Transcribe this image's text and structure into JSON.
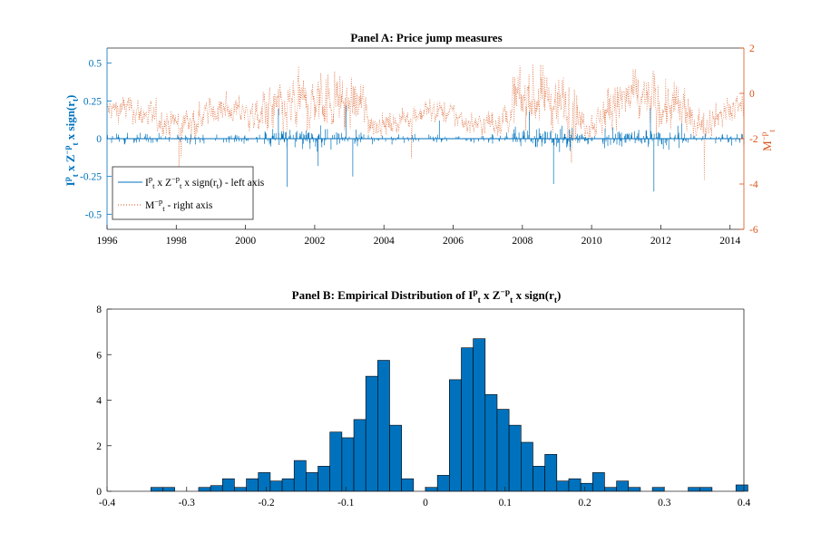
{
  "colors": {
    "blue": "#0072BD",
    "orange": "#D95319",
    "bar_fill": "#0072BD"
  },
  "chart_data": [
    {
      "type": "line",
      "title": "Panel A: Price jump measures",
      "ylabel_left": "I_t^p x Z_t^{-p} x sign(r_t)",
      "ylabel_right": "M_t^{-p}",
      "xlim": [
        1996,
        2014.4
      ],
      "ylim_left": [
        -0.6,
        0.6
      ],
      "ylim_right": [
        -6,
        2
      ],
      "x_ticks": [
        "1996",
        "1998",
        "2000",
        "2002",
        "2004",
        "2006",
        "2008",
        "2010",
        "2012",
        "2014"
      ],
      "y_ticks_left": [
        "-0.5",
        "-0.25",
        "0",
        "0.25",
        "0.5"
      ],
      "y_ticks_right": [
        "-6",
        "-4",
        "-2",
        "0",
        "2"
      ],
      "grid": false,
      "legend": "bottom-left",
      "legend_entries": [
        "I_t^p x Z_t^{-p} x sign(r_t) - left axis",
        "M_t^{-p} - right axis"
      ],
      "series": [
        {
          "name": "I_t^p x Z_t^{-p} x sign(r_t) - left axis",
          "axis": "left",
          "style": "solid"
        },
        {
          "name": "M_t^{-p} - right axis",
          "axis": "right",
          "style": "dotted"
        }
      ],
      "approx_shape": {
        "left_series_spikes": [
          {
            "x": 2000.95,
            "y": 0.2
          },
          {
            "x": 2001.2,
            "y": -0.32
          },
          {
            "x": 2002.1,
            "y": -0.18
          },
          {
            "x": 2002.9,
            "y": 0.22
          },
          {
            "x": 2003.1,
            "y": -0.25
          },
          {
            "x": 2005.6,
            "y": 0.12
          },
          {
            "x": 2008.2,
            "y": 0.18
          },
          {
            "x": 2008.9,
            "y": -0.3
          },
          {
            "x": 2011.7,
            "y": 0.2
          },
          {
            "x": 2011.8,
            "y": -0.35
          },
          {
            "x": 2012.6,
            "y": 0.1
          }
        ],
        "right_series_baseline": -0.9,
        "right_series_range": [
          -4.7,
          1.7
        ]
      }
    },
    {
      "type": "bar",
      "title": "Panel B: Empirical Distribution of I_t^p x Z_t^{-p} x sign(r_t)",
      "xlim": [
        -0.4,
        0.4
      ],
      "ylim": [
        0,
        8
      ],
      "x_ticks": [
        "-0.4",
        "-0.3",
        "-0.2",
        "-0.1",
        "0",
        "0.1",
        "0.2",
        "0.3",
        "0.4"
      ],
      "y_ticks": [
        "0",
        "2",
        "4",
        "6",
        "8"
      ],
      "bin_width": 0.015,
      "bins": [
        {
          "x": -0.3375,
          "y": 0.17
        },
        {
          "x": -0.3225,
          "y": 0.17
        },
        {
          "x": -0.2775,
          "y": 0.17
        },
        {
          "x": -0.2625,
          "y": 0.25
        },
        {
          "x": -0.2475,
          "y": 0.55
        },
        {
          "x": -0.2325,
          "y": 0.17
        },
        {
          "x": -0.2175,
          "y": 0.55
        },
        {
          "x": -0.2025,
          "y": 0.82
        },
        {
          "x": -0.1875,
          "y": 0.45
        },
        {
          "x": -0.1725,
          "y": 0.55
        },
        {
          "x": -0.1575,
          "y": 1.35
        },
        {
          "x": -0.1425,
          "y": 0.82
        },
        {
          "x": -0.1275,
          "y": 1.1
        },
        {
          "x": -0.1125,
          "y": 2.6
        },
        {
          "x": -0.0975,
          "y": 2.35
        },
        {
          "x": -0.0825,
          "y": 3.15
        },
        {
          "x": -0.0675,
          "y": 5.05
        },
        {
          "x": -0.0525,
          "y": 5.75
        },
        {
          "x": -0.0375,
          "y": 2.9
        },
        {
          "x": -0.0225,
          "y": 0.55
        },
        {
          "x": 0.0075,
          "y": 0.17
        },
        {
          "x": 0.0225,
          "y": 0.7
        },
        {
          "x": 0.0375,
          "y": 4.9
        },
        {
          "x": 0.0525,
          "y": 6.3
        },
        {
          "x": 0.0675,
          "y": 6.7
        },
        {
          "x": 0.0825,
          "y": 4.25
        },
        {
          "x": 0.0975,
          "y": 3.6
        },
        {
          "x": 0.1125,
          "y": 2.9
        },
        {
          "x": 0.1275,
          "y": 2.15
        },
        {
          "x": 0.1425,
          "y": 1.1
        },
        {
          "x": 0.1575,
          "y": 1.62
        },
        {
          "x": 0.1725,
          "y": 0.45
        },
        {
          "x": 0.1875,
          "y": 0.55
        },
        {
          "x": 0.2025,
          "y": 0.35
        },
        {
          "x": 0.2175,
          "y": 0.82
        },
        {
          "x": 0.2325,
          "y": 0.17
        },
        {
          "x": 0.2475,
          "y": 0.45
        },
        {
          "x": 0.2625,
          "y": 0.17
        },
        {
          "x": 0.2925,
          "y": 0.17
        },
        {
          "x": 0.3375,
          "y": 0.17
        },
        {
          "x": 0.3525,
          "y": 0.17
        },
        {
          "x": 0.3975,
          "y": 0.28
        }
      ]
    }
  ]
}
